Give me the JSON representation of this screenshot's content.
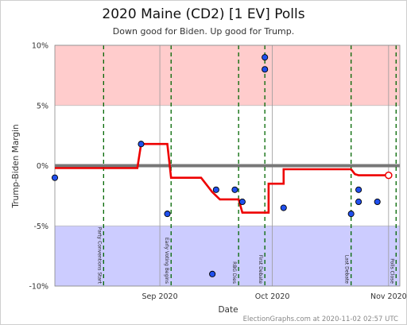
{
  "chart_data": {
    "type": "scatter",
    "title": "2020 Maine (CD2) [1 EV] Polls",
    "subtitle": "Down good for Biden. Up good for Trump.",
    "xlabel": "Date",
    "ylabel": "Trump-Biden Margin",
    "x_range": [
      "2020-08-04",
      "2020-11-04"
    ],
    "ylim": [
      -10,
      10
    ],
    "y_ticks": [
      {
        "value": 10,
        "label": "10%"
      },
      {
        "value": 5,
        "label": "5%"
      },
      {
        "value": 0,
        "label": "0%"
      },
      {
        "value": -5,
        "label": "-5%"
      },
      {
        "value": -10,
        "label": "-10%"
      }
    ],
    "x_ticks": [
      {
        "date": "2020-09-01",
        "label": "Sep 2020"
      },
      {
        "date": "2020-10-01",
        "label": "Oct 2020"
      },
      {
        "date": "2020-11-01",
        "label": "Nov 2020"
      }
    ],
    "bands": [
      {
        "from": 5,
        "to": 10,
        "color": "#ffcccc"
      },
      {
        "from": -10,
        "to": -5,
        "color": "#ccccff"
      }
    ],
    "events": [
      {
        "date": "2020-08-17",
        "label": "Party Conventions Start"
      },
      {
        "date": "2020-09-04",
        "label": "Early Voting Begins"
      },
      {
        "date": "2020-09-22",
        "label": "RBG Dies"
      },
      {
        "date": "2020-09-29",
        "label": "First Debate"
      },
      {
        "date": "2020-10-22",
        "label": "Last Debate"
      },
      {
        "date": "2020-11-03",
        "label": "Polls Close"
      }
    ],
    "polls": [
      {
        "date": "2020-08-04",
        "margin": -1
      },
      {
        "date": "2020-08-27",
        "margin": 1.8
      },
      {
        "date": "2020-09-03",
        "margin": -4
      },
      {
        "date": "2020-09-15",
        "margin": -9
      },
      {
        "date": "2020-09-16",
        "margin": -2
      },
      {
        "date": "2020-09-21",
        "margin": -2
      },
      {
        "date": "2020-09-23",
        "margin": -3
      },
      {
        "date": "2020-09-29",
        "margin": 9
      },
      {
        "date": "2020-09-29",
        "margin": 8
      },
      {
        "date": "2020-10-04",
        "margin": -3.5
      },
      {
        "date": "2020-10-22",
        "margin": -4
      },
      {
        "date": "2020-10-24",
        "margin": -2
      },
      {
        "date": "2020-10-24",
        "margin": -3
      },
      {
        "date": "2020-10-29",
        "margin": -3
      }
    ],
    "average": [
      [
        "2020-08-04",
        -0.2
      ],
      [
        "2020-08-26",
        -0.2
      ],
      [
        "2020-08-27",
        1.8
      ],
      [
        "2020-09-03",
        1.8
      ],
      [
        "2020-09-04",
        -1
      ],
      [
        "2020-09-12",
        -1
      ],
      [
        "2020-09-15",
        -2.2
      ],
      [
        "2020-09-17",
        -2.8
      ],
      [
        "2020-09-22",
        -2.8
      ],
      [
        "2020-09-23",
        -3.9
      ],
      [
        "2020-09-30",
        -3.9
      ],
      [
        "2020-09-30",
        -1.5
      ],
      [
        "2020-10-04",
        -1.5
      ],
      [
        "2020-10-04",
        -0.3
      ],
      [
        "2020-10-22",
        -0.3
      ],
      [
        "2020-10-23",
        -0.7
      ],
      [
        "2020-10-24",
        -0.8
      ],
      [
        "2020-11-01",
        -0.8
      ]
    ],
    "latest_average": {
      "date": "2020-11-01",
      "margin": -0.8
    },
    "colors": {
      "poll_fill": "#2050ee",
      "average_line": "#ee0000",
      "zero_line": "#777777",
      "event_line": "#006600",
      "month_line": "#999999"
    }
  },
  "footer": "ElectionGraphs.com at 2020-11-02 02:57 UTC"
}
